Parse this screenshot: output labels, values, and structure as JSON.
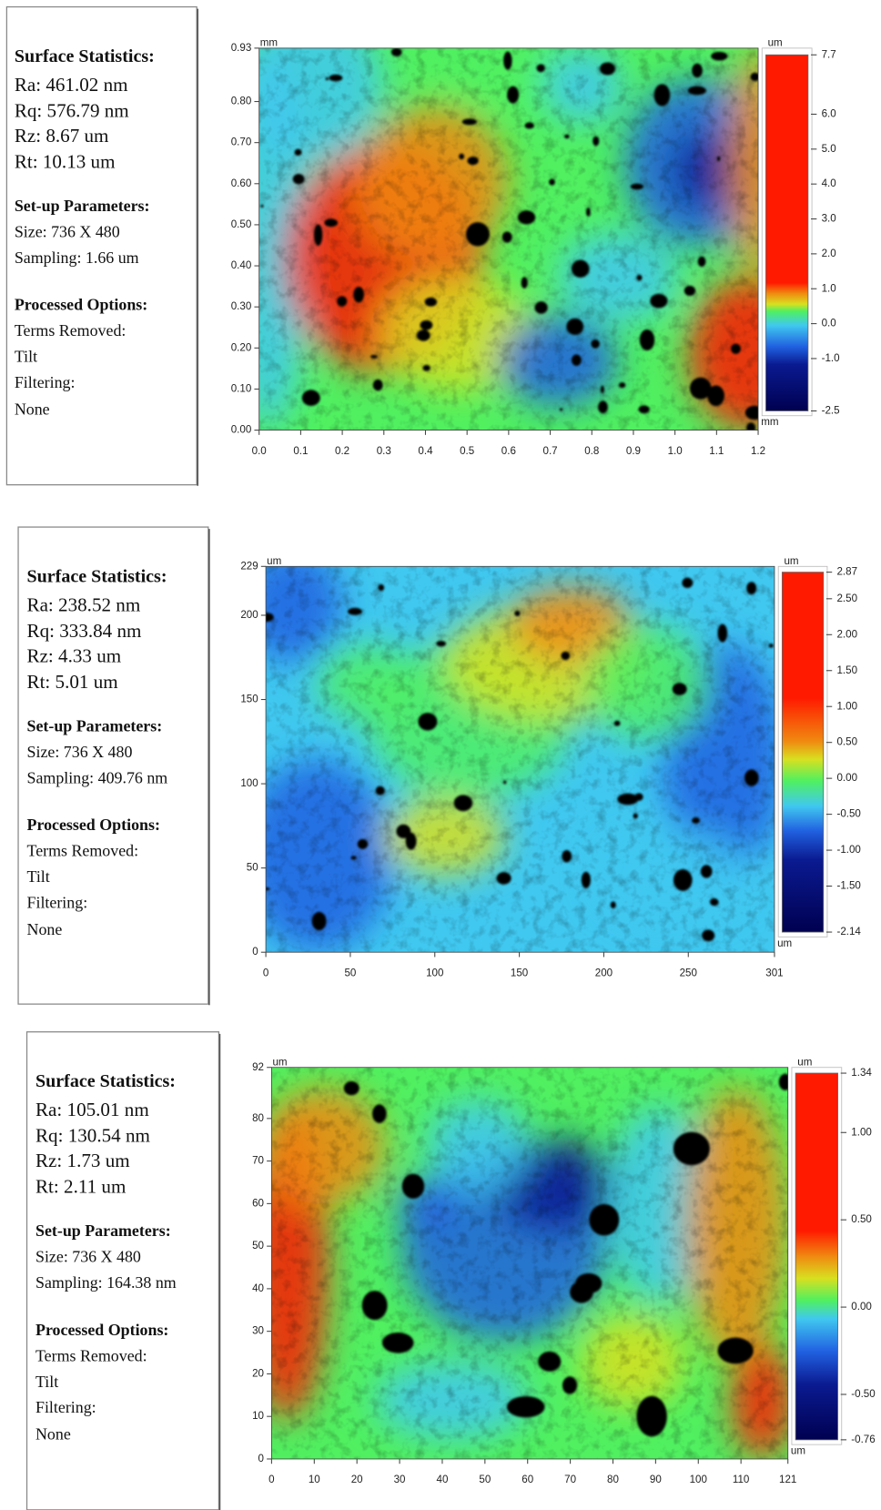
{
  "panels": [
    {
      "stats": {
        "title": "Surface Statistics:",
        "lines": [
          "Ra:  461.02 nm",
          "Rq:  576.79 nm",
          "Rz:  8.67 um",
          "Rt:  10.13 um"
        ]
      },
      "setup": {
        "title": "Set-up Parameters:",
        "lines": [
          "Size: 736 X 480",
          "Sampling:  1.66 um"
        ]
      },
      "processed": {
        "title": "Processed Options:",
        "lines": [
          "Terms Removed:",
          "Tilt",
          "Filtering:",
          "None"
        ]
      },
      "map": {
        "x_unit": "mm",
        "y_unit": "mm",
        "xlim": [
          0,
          1.2
        ],
        "ylim": [
          0,
          0.93
        ],
        "xticks": [
          {
            "value": 0,
            "label": "0.0"
          },
          0.1,
          0.2,
          0.3,
          0.4,
          0.5,
          0.6,
          0.7,
          0.8,
          0.9,
          {
            "value": 1,
            "label": "1.0"
          },
          1.1,
          1.2
        ],
        "yticks": [
          {
            "value": 0,
            "label": "0.00"
          },
          {
            "value": 0.1,
            "label": "0.10"
          },
          {
            "value": 0.2,
            "label": "0.20"
          },
          {
            "value": 0.3,
            "label": "0.30"
          },
          {
            "value": 0.4,
            "label": "0.40"
          },
          {
            "value": 0.5,
            "label": "0.50"
          },
          {
            "value": 0.6,
            "label": "0.60"
          },
          {
            "value": 0.7,
            "label": "0.70"
          },
          {
            "value": 0.8,
            "label": "0.80"
          },
          0.93
        ],
        "colorbar": {
          "unit": "um",
          "lim": [
            -2.5,
            7.7
          ],
          "ticks": [
            7.7,
            {
              "value": 6,
              "label": "6.0"
            },
            {
              "value": 5,
              "label": "5.0"
            },
            {
              "value": 4,
              "label": "4.0"
            },
            {
              "value": 3,
              "label": "3.0"
            },
            {
              "value": 2,
              "label": "2.0"
            },
            {
              "value": 1,
              "label": "1.0"
            },
            {
              "value": 0,
              "label": "0.0"
            },
            {
              "value": -1,
              "label": "-1.0"
            },
            -2.5
          ]
        }
      }
    },
    {
      "stats": {
        "title": "Surface Statistics:",
        "lines": [
          "Ra:  238.52 nm",
          "Rq:  333.84 nm",
          "Rz:  4.33 um",
          "Rt:  5.01 um"
        ]
      },
      "setup": {
        "title": "Set-up Parameters:",
        "lines": [
          "Size: 736 X 480",
          "Sampling:  409.76 nm"
        ]
      },
      "processed": {
        "title": "Processed Options:",
        "lines": [
          "Terms Removed:",
          "Tilt",
          "Filtering:",
          "None"
        ]
      },
      "map": {
        "x_unit": "um",
        "y_unit": "um",
        "xlim": [
          0,
          301
        ],
        "ylim": [
          0,
          229
        ],
        "xticks": [
          0,
          50,
          100,
          150,
          200,
          250,
          301
        ],
        "yticks": [
          0,
          50,
          100,
          150,
          200,
          229
        ],
        "colorbar": {
          "unit": "um",
          "lim": [
            -2.14,
            2.87
          ],
          "ticks": [
            2.87,
            {
              "value": 2.5,
              "label": "2.50"
            },
            {
              "value": 2,
              "label": "2.00"
            },
            {
              "value": 1.5,
              "label": "1.50"
            },
            {
              "value": 1,
              "label": "1.00"
            },
            {
              "value": 0.5,
              "label": "0.50"
            },
            {
              "value": 0,
              "label": "0.00"
            },
            {
              "value": -0.5,
              "label": "-0.50"
            },
            {
              "value": -1,
              "label": "-1.00"
            },
            {
              "value": -1.5,
              "label": "-1.50"
            },
            -2.14
          ]
        }
      }
    },
    {
      "stats": {
        "title": "Surface Statistics:",
        "lines": [
          "Ra:  105.01 nm",
          "Rq:  130.54 nm",
          "Rz:  1.73 um",
          "Rt:  2.11 um"
        ]
      },
      "setup": {
        "title": "Set-up Parameters:",
        "lines": [
          "Size: 736 X 480",
          "Sampling:  164.38 nm"
        ]
      },
      "processed": {
        "title": "Processed Options:",
        "lines": [
          "Terms Removed:",
          "Tilt",
          "Filtering:",
          "None"
        ]
      },
      "map": {
        "x_unit": "um",
        "y_unit": "um",
        "xlim": [
          0,
          121
        ],
        "ylim": [
          0,
          92
        ],
        "xticks": [
          0,
          10,
          20,
          30,
          40,
          50,
          60,
          70,
          80,
          90,
          100,
          110,
          121
        ],
        "yticks": [
          0,
          10,
          20,
          30,
          40,
          50,
          60,
          70,
          80,
          92
        ],
        "colorbar": {
          "unit": "um",
          "lim": [
            -0.76,
            1.34
          ],
          "ticks": [
            1.34,
            {
              "value": 1,
              "label": "1.00"
            },
            {
              "value": 0.5,
              "label": "0.50"
            },
            {
              "value": 0,
              "label": "0.00"
            },
            {
              "value": -0.5,
              "label": "-0.50"
            },
            -0.76
          ]
        }
      }
    }
  ]
}
